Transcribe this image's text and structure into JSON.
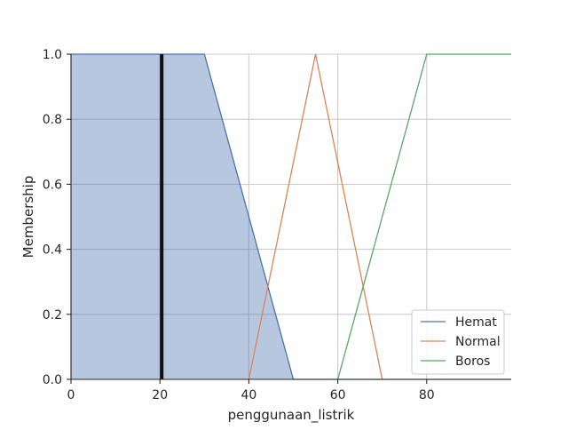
{
  "chart_data": {
    "type": "line",
    "title": "",
    "xlabel": "penggunaan_listrik",
    "ylabel": "Membership",
    "xlim": [
      0,
      99
    ],
    "ylim": [
      0,
      1
    ],
    "x_ticks": [
      "0",
      "20",
      "40",
      "60",
      "80"
    ],
    "y_ticks": [
      "0.0",
      "0.2",
      "0.4",
      "0.6",
      "0.8",
      "1.0"
    ],
    "grid": true,
    "legend_position": "lower-right",
    "series": [
      {
        "name": "Hemat",
        "color": "#4c72b0",
        "x": [
          0,
          30,
          50,
          99
        ],
        "y": [
          1,
          1,
          0,
          0
        ]
      },
      {
        "name": "Normal",
        "color": "#dd8452",
        "x": [
          40,
          55,
          70
        ],
        "y": [
          0,
          1,
          0
        ]
      },
      {
        "name": "Boros",
        "color": "#55a868",
        "x": [
          60,
          80,
          99
        ],
        "y": [
          0,
          1,
          1
        ]
      }
    ],
    "activation": {
      "series": "Hemat",
      "fill_color": "#4c72b0",
      "fill_opacity": 0.4,
      "input_value": 20.4,
      "membership": 1.0,
      "line_color": "#111111"
    }
  }
}
